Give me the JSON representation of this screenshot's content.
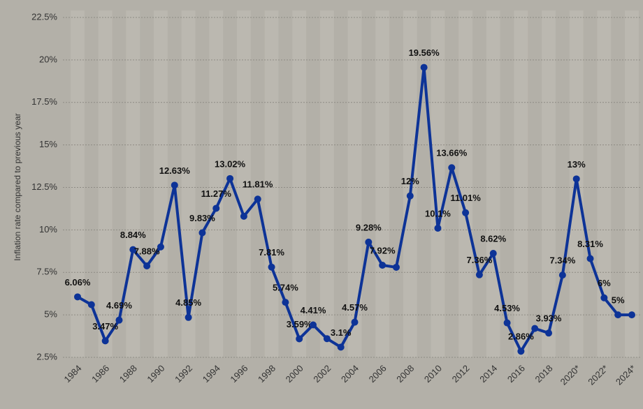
{
  "chart_data": {
    "type": "line",
    "y_label": "Inflation rate compared to previous year",
    "categories": [
      "1984",
      null,
      "1986",
      null,
      "1988",
      null,
      "1990",
      null,
      "1992",
      null,
      "1994",
      null,
      "1996",
      null,
      "1998",
      null,
      "2000",
      null,
      "2002",
      null,
      "2004",
      null,
      "2006",
      null,
      "2008",
      null,
      "2010",
      null,
      "2012",
      null,
      "2014",
      null,
      "2016",
      null,
      "2018",
      null,
      "2020*",
      null,
      "2022*",
      null,
      "2024*"
    ],
    "series": [
      {
        "color": "#0d3397",
        "values": [
          6.06,
          5.6,
          3.47,
          4.69,
          8.84,
          7.88,
          9.0,
          12.63,
          4.85,
          9.83,
          11.27,
          13.02,
          10.8,
          11.81,
          7.81,
          5.74,
          3.59,
          4.41,
          3.6,
          3.1,
          4.57,
          9.28,
          7.92,
          7.8,
          12,
          19.56,
          10.1,
          13.66,
          11.01,
          7.36,
          8.62,
          4.53,
          2.86,
          4.2,
          3.93,
          7.34,
          13,
          8.31,
          6,
          5,
          5
        ],
        "value_labels": [
          "6.06%",
          null,
          "3.47%",
          "4.69%",
          "8.84%",
          "7.88%",
          null,
          "12.63%",
          "4.85%",
          "9.83%",
          "11.27%",
          "13.02%",
          null,
          "11.81%",
          "7.81%",
          "5.74%",
          "3.59%",
          "4.41%",
          null,
          "3.1%",
          "4.57%",
          "9.28%",
          "7.92%",
          null,
          "12%",
          "19.56%",
          "10.1%",
          "13.66%",
          "11.01%",
          "7.36%",
          "8.62%",
          "4.53%",
          "2.86%",
          null,
          "3.93%",
          "7.34%",
          "13%",
          "8.31%",
          "6%",
          "5%",
          null
        ]
      }
    ],
    "ylim": [
      2.5,
      22.5
    ],
    "yticks": [
      {
        "value": 2.5,
        "label": "2.5%"
      },
      {
        "value": 5,
        "label": "5%"
      },
      {
        "value": 7.5,
        "label": "7.5%"
      },
      {
        "value": 10,
        "label": "10%"
      },
      {
        "value": 12.5,
        "label": "12.5%"
      },
      {
        "value": 15,
        "label": "15%"
      },
      {
        "value": 17.5,
        "label": "17.5%"
      },
      {
        "value": 20,
        "label": "20%"
      },
      {
        "value": 22.5,
        "label": "22.5%"
      }
    ],
    "grid": true
  }
}
